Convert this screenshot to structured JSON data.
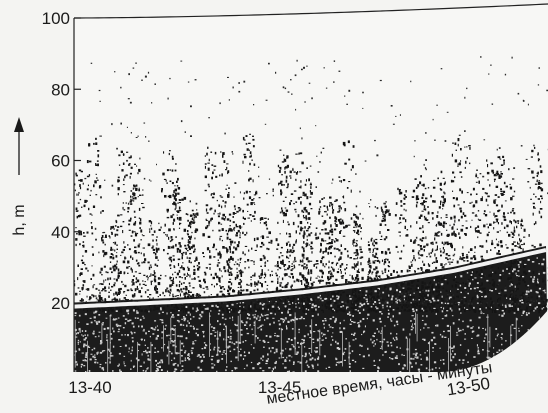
{
  "chart_data": {
    "type": "heatmap",
    "title": "",
    "xlabel": "местное время, часы - минуты",
    "ylabel": "h, m",
    "ylim": [
      0,
      100
    ],
    "yticks": [
      20,
      40,
      60,
      80,
      100
    ],
    "x_tick_labels": [
      "13-40",
      "13-45",
      "13-50"
    ],
    "x_tick_minutes": [
      40,
      45,
      50
    ],
    "xlim_minutes": [
      40,
      52.5
    ],
    "boundary_line": {
      "x_minutes": [
        40,
        42,
        44,
        46,
        48,
        50,
        52.5
      ],
      "h": [
        19,
        20,
        21,
        23,
        25.5,
        29,
        35
      ]
    },
    "grid": false,
    "legend": "none",
    "colors": {
      "background": "#f4f4f2",
      "scatter": "#141414",
      "boundary_line": "#f2f2f2"
    }
  }
}
